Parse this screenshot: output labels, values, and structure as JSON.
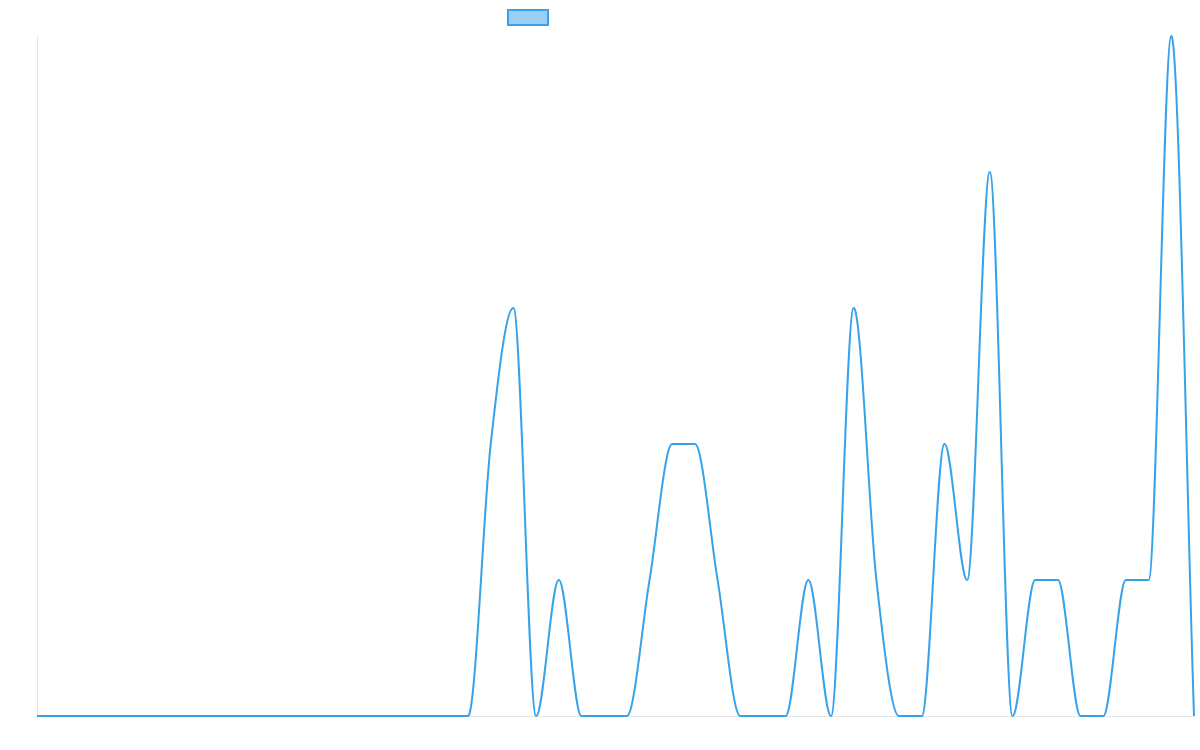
{
  "chart_data": {
    "type": "line",
    "categories": [
      null,
      null,
      null,
      null,
      null,
      null,
      null,
      null,
      null,
      null,
      null,
      null,
      null,
      null,
      null,
      null,
      null,
      null,
      null,
      null,
      null,
      null,
      null,
      null,
      null,
      null,
      null,
      null,
      null,
      null,
      null,
      null,
      null,
      null,
      null,
      null,
      null,
      null,
      null,
      null,
      null,
      null,
      null,
      null,
      null,
      null,
      null,
      null,
      null,
      null,
      null,
      null
    ],
    "series": [
      {
        "color": "#36a2eb",
        "values": [
          0,
          0,
          0,
          0,
          0,
          0,
          0,
          0,
          0,
          0,
          0,
          0,
          0,
          0,
          0,
          0,
          0,
          0,
          0,
          0,
          2,
          3,
          0,
          1,
          0,
          0,
          0,
          1,
          2,
          2,
          1,
          0,
          0,
          0,
          1,
          0,
          3,
          1,
          0,
          0,
          2,
          1,
          4,
          0,
          1,
          1,
          0,
          0,
          1,
          1,
          5,
          0
        ]
      }
    ],
    "ylim": [
      0,
      5
    ]
  }
}
